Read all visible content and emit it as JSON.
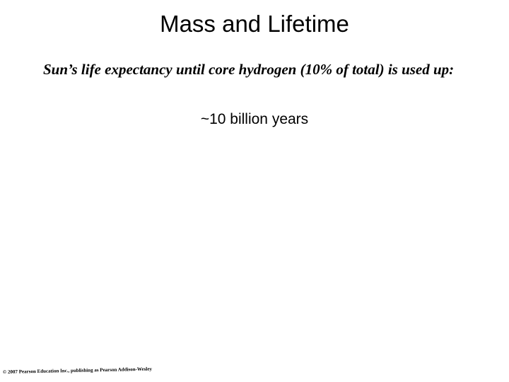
{
  "slide": {
    "title": "Mass and Lifetime",
    "subtitle": "Sun’s life expectancy until core hydrogen (10% of total) is used up:",
    "statement": "~10 billion years",
    "copyright": "© 2007 Pearson Education Inc., publishing as Pearson Addison-Wesley"
  }
}
